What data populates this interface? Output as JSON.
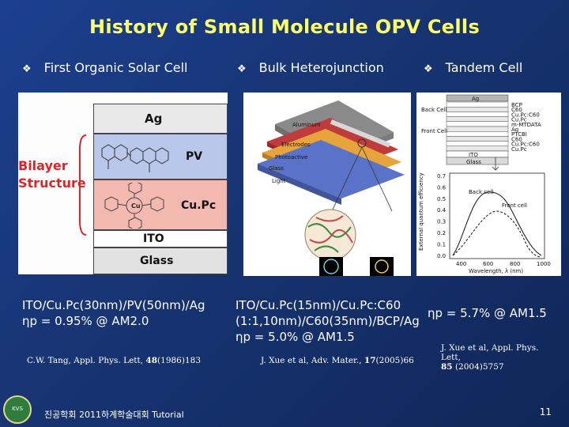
{
  "slide": {
    "title": "History of Small Molecule OPV Cells",
    "page_number": "11",
    "footer_text": "진공학회 2011하계학술대회 Tutorial",
    "logo_text": "KVS"
  },
  "columns": [
    {
      "heading": "First Organic Solar Cell",
      "structure": "ITO/Cu.Pc(30nm)/PV(50nm)/Ag",
      "efficiency": "ηp = 0.95% @ AM2.0",
      "citation_prefix": "C.W. Tang, Appl. Phys. Lett, ",
      "citation_volume": "48",
      "citation_suffix": "(1986)183"
    },
    {
      "heading": "Bulk Heterojunction",
      "structure_line1": "ITO/Cu.Pc(15nm)/Cu.Pc:C60",
      "structure_line2": "(1:1,10nm)/C60(35nm)/BCP/Ag",
      "efficiency": "ηp = 5.0% @ AM1.5",
      "citation_prefix": "J. Xue et al, Adv. Mater., ",
      "citation_volume": "17",
      "citation_suffix": "(2005)66"
    },
    {
      "heading": "Tandem Cell",
      "efficiency": "ηp = 5.7% @ AM1.5",
      "citation_prefix": "J. Xue et al, Appl. Phys. Lett,",
      "citation_volume": "85",
      "citation_suffix": " (2004)5757"
    }
  ],
  "bilayer_diagram": {
    "side_label_line1": "Bilayer",
    "side_label_line2": "Structure",
    "layers": [
      "Ag",
      "PV",
      "Cu.Pc",
      "ITO",
      "Glass"
    ]
  },
  "bulk_diagram": {
    "layer_labels": [
      "Aluminum",
      "Electrodes",
      "Photoactive",
      "Glass",
      "Light"
    ]
  },
  "tandem_diagram": {
    "back_cell_label": "Back Cell",
    "front_cell_label": "Front Cell",
    "layers": [
      "BCP",
      "C60",
      "Cu.Pc:C60",
      "Cu.Pc",
      "m-MTDATA",
      "Ag",
      "PTCBI",
      "C60",
      "Cu.Pc:C60",
      "Cu.Pc"
    ],
    "top_layer": "Ag",
    "ito_label": "ITO",
    "glass_label": "Glass",
    "chart_ylabel": "External quantum efficiency",
    "chart_xlabel": "Wavelength, λ (nm)",
    "legend_back": "Back cell",
    "legend_front": "Front cell",
    "y_ticks": [
      "0.7",
      "0.6",
      "0.5",
      "0.4",
      "0.3",
      "0.2",
      "0.1",
      "0.0"
    ],
    "x_ticks": [
      "400",
      "600",
      "800",
      "1000"
    ]
  },
  "colors": {
    "title": "#ffff66",
    "background": "#173472",
    "bilayer_label": "#d8262b"
  }
}
